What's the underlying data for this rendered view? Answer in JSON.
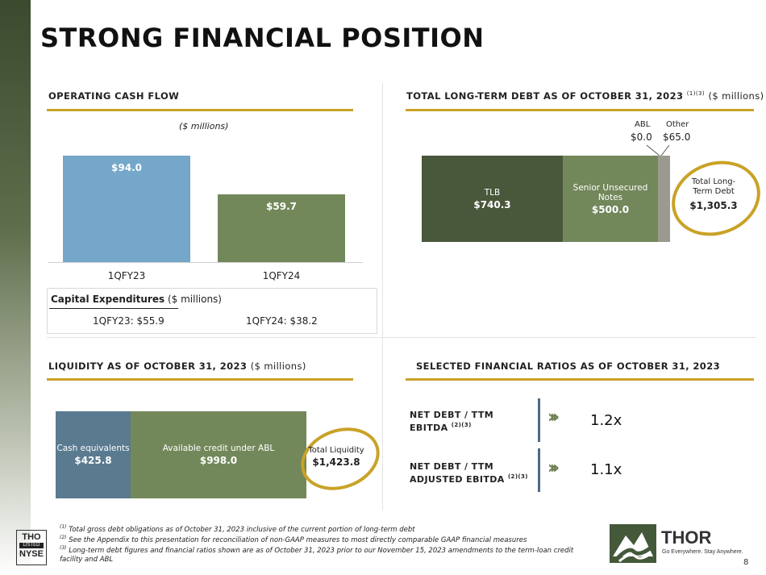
{
  "title": "STRONG FINANCIAL POSITION",
  "ocf": {
    "heading": "OPERATING CASH FLOW",
    "units": "($ millions)",
    "chart_data": {
      "type": "bar",
      "categories": [
        "1QFY23",
        "1QFY24"
      ],
      "values": [
        94.0,
        59.7
      ],
      "value_labels": [
        "$94.0",
        "$59.7"
      ],
      "colors": [
        "#74a7c9",
        "#73885a"
      ],
      "ylim": [
        0,
        100
      ]
    }
  },
  "capex": {
    "label": "Capital Expenditures",
    "units": "($ millions)",
    "fy23": "1QFY23: $55.9",
    "fy24": "1QFY24: $38.2"
  },
  "debt": {
    "heading": "TOTAL LONG-TERM DEBT AS OF OCTOBER 31, 2023",
    "sup": "(1)(3)",
    "units": "($ millions)",
    "chart_data": {
      "type": "bar",
      "orientation": "horizontal-stacked",
      "segments": [
        {
          "name": "TLB",
          "value": 740.3,
          "label": "$740.3",
          "color": "#49573a"
        },
        {
          "name": "Senior Unsecured Notes",
          "value": 500.0,
          "label": "$500.0",
          "color": "#72875a"
        },
        {
          "name": "ABL",
          "value": 0.0,
          "label": "$0.0",
          "color": "#8a8a8a"
        },
        {
          "name": "Other",
          "value": 65.0,
          "label": "$65.0",
          "color": "#9a9a90"
        }
      ]
    },
    "total_label": "Total Long-Term Debt",
    "total_value": "$1,305.3"
  },
  "liquidity": {
    "heading": "LIQUIDITY AS OF OCTOBER 31, 2023",
    "units": "($ millions)",
    "chart_data": {
      "type": "bar",
      "orientation": "horizontal-stacked",
      "segments": [
        {
          "name": "Cash equivalents",
          "value": 425.8,
          "label": "$425.8",
          "color": "#5a7a90"
        },
        {
          "name": "Available credit under ABL",
          "value": 998.0,
          "label": "$998.0",
          "color": "#73885a"
        }
      ]
    },
    "total_label": "Total Liquidity",
    "total_value": "$1,423.8"
  },
  "ratios": {
    "heading": "SELECTED FINANCIAL RATIOS AS OF OCTOBER 31, 2023",
    "items": [
      {
        "line1": "NET DEBT / TTM",
        "line2": "EBITDA",
        "sup": "(2)(3)",
        "value": "1.2x"
      },
      {
        "line1": "NET DEBT / TTM",
        "line2": "ADJUSTED EBITDA",
        "sup": "(2)(3)",
        "value": "1.1x"
      }
    ]
  },
  "footnotes": [
    {
      "sup": "(1)",
      "text": "Total gross debt obligations as of October 31, 2023 inclusive of the current portion of long-term debt"
    },
    {
      "sup": "(2)",
      "text": "See the Appendix to this presentation for reconciliation of non-GAAP measures to most directly comparable GAAP financial measures"
    },
    {
      "sup": "(3)",
      "text": "Long-term debt figures and financial ratios shown are as of October 31, 2023 prior to our November 15, 2023 amendments to the term-loan credit facility and ABL"
    }
  ],
  "nyse": {
    "line1": "THO",
    "line2": "LISTED",
    "line3": "NYSE"
  },
  "logo": {
    "name": "THOR",
    "tagline": "Go Everywhere. Stay Anywhere."
  },
  "page_number": "8",
  "colors": {
    "gold": "#c9a227",
    "blue_bar": "#74a7c9",
    "green_bar": "#73885a",
    "dark_green": "#49573a"
  }
}
